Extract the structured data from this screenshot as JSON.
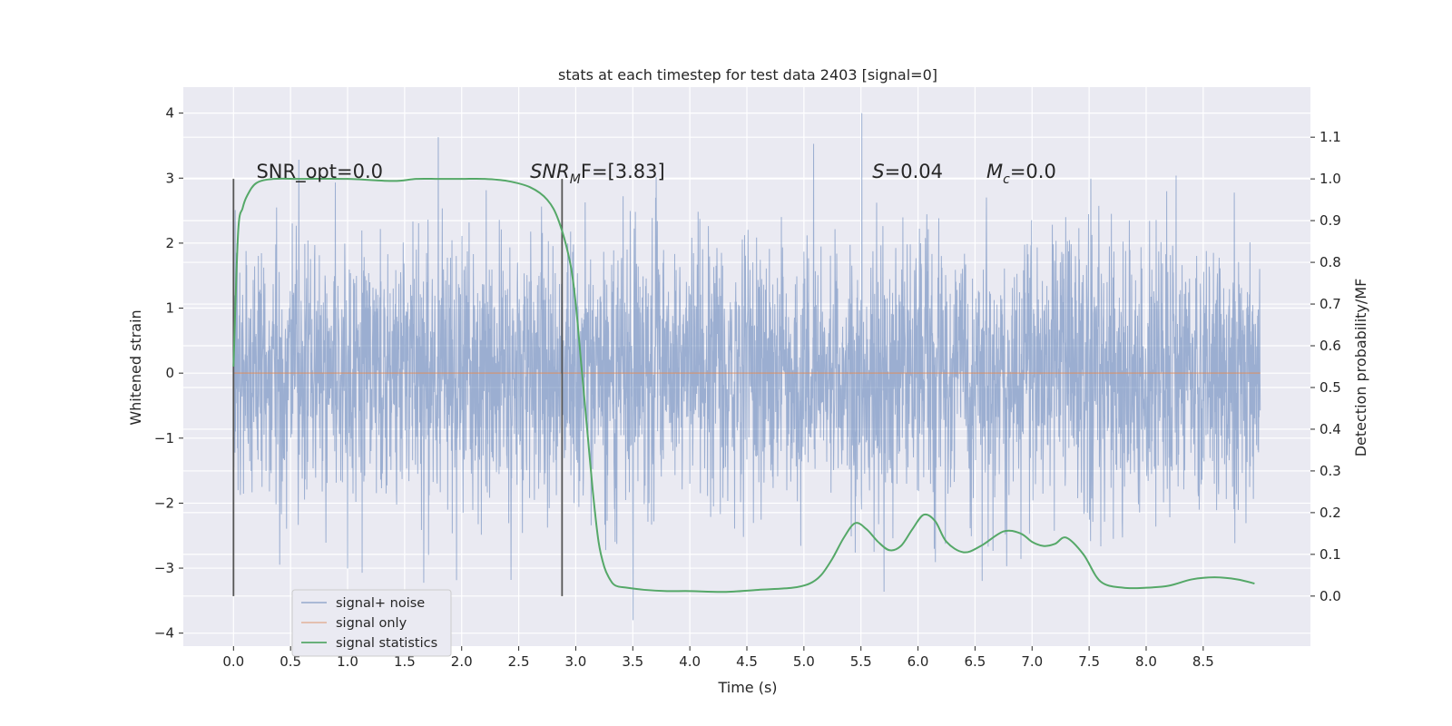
{
  "chart_data": {
    "type": "line",
    "title": "stats at each timestep for test data 2403 [signal=0]",
    "xlabel": "Time (s)",
    "ylabel": "Whitened strain",
    "y2label": "Detection probability/MF",
    "xlim": [
      -0.44,
      9.44
    ],
    "ylim": [
      -4.2,
      4.4
    ],
    "y2lim": [
      -0.12,
      1.22
    ],
    "x_ticks": [
      0.0,
      0.5,
      1.0,
      1.5,
      2.0,
      2.5,
      3.0,
      3.5,
      4.0,
      4.5,
      5.0,
      5.5,
      6.0,
      6.5,
      7.0,
      7.5,
      8.0,
      8.5
    ],
    "x_tick_labels": [
      "0.0",
      "0.5",
      "1.0",
      "1.5",
      "2.0",
      "2.5",
      "3.0",
      "3.5",
      "4.0",
      "4.5",
      "5.0",
      "5.5",
      "6.0",
      "6.5",
      "7.0",
      "7.5",
      "8.0",
      "8.5"
    ],
    "y_ticks": [
      -4,
      -3,
      -2,
      -1,
      0,
      1,
      2,
      3,
      4
    ],
    "y_tick_labels": [
      "−4",
      "−3",
      "−2",
      "−1",
      "0",
      "1",
      "2",
      "3",
      "4"
    ],
    "y2_ticks": [
      0.0,
      0.1,
      0.2,
      0.3,
      0.4,
      0.5,
      0.6,
      0.7,
      0.8,
      0.9,
      1.0,
      1.1
    ],
    "y2_tick_labels": [
      "0.0",
      "0.1",
      "0.2",
      "0.3",
      "0.4",
      "0.5",
      "0.6",
      "0.7",
      "0.8",
      "0.9",
      "1.0",
      "1.1"
    ],
    "grid": true,
    "legend_position": "lower-left",
    "series": [
      {
        "name": "signal+ noise",
        "axis": "left",
        "color": "#4c72b0",
        "kind": "noise",
        "t_start": 0.0,
        "t_end": 9.0,
        "approx_range": [
          -3.8,
          4.0
        ]
      },
      {
        "name": "signal only",
        "axis": "left",
        "color": "#dd8452",
        "kind": "constant",
        "x": [
          0.0,
          9.0
        ],
        "y": [
          0.0,
          0.0
        ]
      },
      {
        "name": "signal statistics",
        "axis": "right",
        "color": "#55a868",
        "x": [
          0.0,
          0.04,
          0.08,
          0.12,
          0.2,
          0.35,
          0.6,
          1.0,
          1.4,
          1.6,
          1.8,
          2.0,
          2.2,
          2.4,
          2.6,
          2.75,
          2.85,
          2.95,
          3.0,
          3.05,
          3.1,
          3.15,
          3.2,
          3.25,
          3.3,
          3.35,
          3.45,
          3.6,
          3.8,
          4.0,
          4.3,
          4.6,
          4.9,
          5.05,
          5.15,
          5.25,
          5.35,
          5.45,
          5.55,
          5.65,
          5.75,
          5.85,
          5.95,
          6.05,
          6.15,
          6.25,
          6.4,
          6.55,
          6.75,
          6.9,
          7.0,
          7.1,
          7.2,
          7.3,
          7.45,
          7.6,
          7.8,
          8.0,
          8.2,
          8.4,
          8.6,
          8.8,
          8.95
        ],
        "y": [
          0.55,
          0.87,
          0.93,
          0.96,
          0.99,
          1.0,
          1.0,
          1.0,
          0.995,
          1.0,
          1.0,
          1.0,
          1.0,
          0.995,
          0.98,
          0.95,
          0.9,
          0.8,
          0.7,
          0.55,
          0.4,
          0.25,
          0.13,
          0.07,
          0.04,
          0.025,
          0.02,
          0.015,
          0.012,
          0.012,
          0.01,
          0.015,
          0.02,
          0.03,
          0.05,
          0.09,
          0.14,
          0.175,
          0.16,
          0.13,
          0.11,
          0.12,
          0.16,
          0.195,
          0.18,
          0.13,
          0.105,
          0.12,
          0.155,
          0.15,
          0.13,
          0.12,
          0.125,
          0.14,
          0.1,
          0.035,
          0.02,
          0.02,
          0.025,
          0.04,
          0.045,
          0.04,
          0.03
        ]
      }
    ],
    "vertical_lines": [
      {
        "x": 0.0,
        "y2_range": [
          0.0,
          1.0
        ],
        "color": "#555555"
      },
      {
        "x": 2.88,
        "y2_range": [
          0.0,
          1.0
        ],
        "color": "#555555"
      }
    ],
    "annotations": [
      {
        "id": "snr-opt",
        "text": "SNR_opt=0.0",
        "x": 0.2
      },
      {
        "id": "snr-mf",
        "base": "SNR",
        "sub": "M",
        "suffix": "F=[3.83]",
        "x": 2.6
      },
      {
        "id": "s-stat",
        "base": "S",
        "suffix": "=0.04",
        "x": 5.6
      },
      {
        "id": "mc-stat",
        "base": "M",
        "sub": "c",
        "suffix": "=0.0",
        "x": 6.6
      }
    ],
    "annotation_y2": 1.0,
    "colors": {
      "plot_background": "#eaeaf2",
      "grid": "#ffffff",
      "noise": "#4c72b0",
      "signal": "#dd8452",
      "statistics": "#55a868",
      "text": "#262626"
    }
  }
}
